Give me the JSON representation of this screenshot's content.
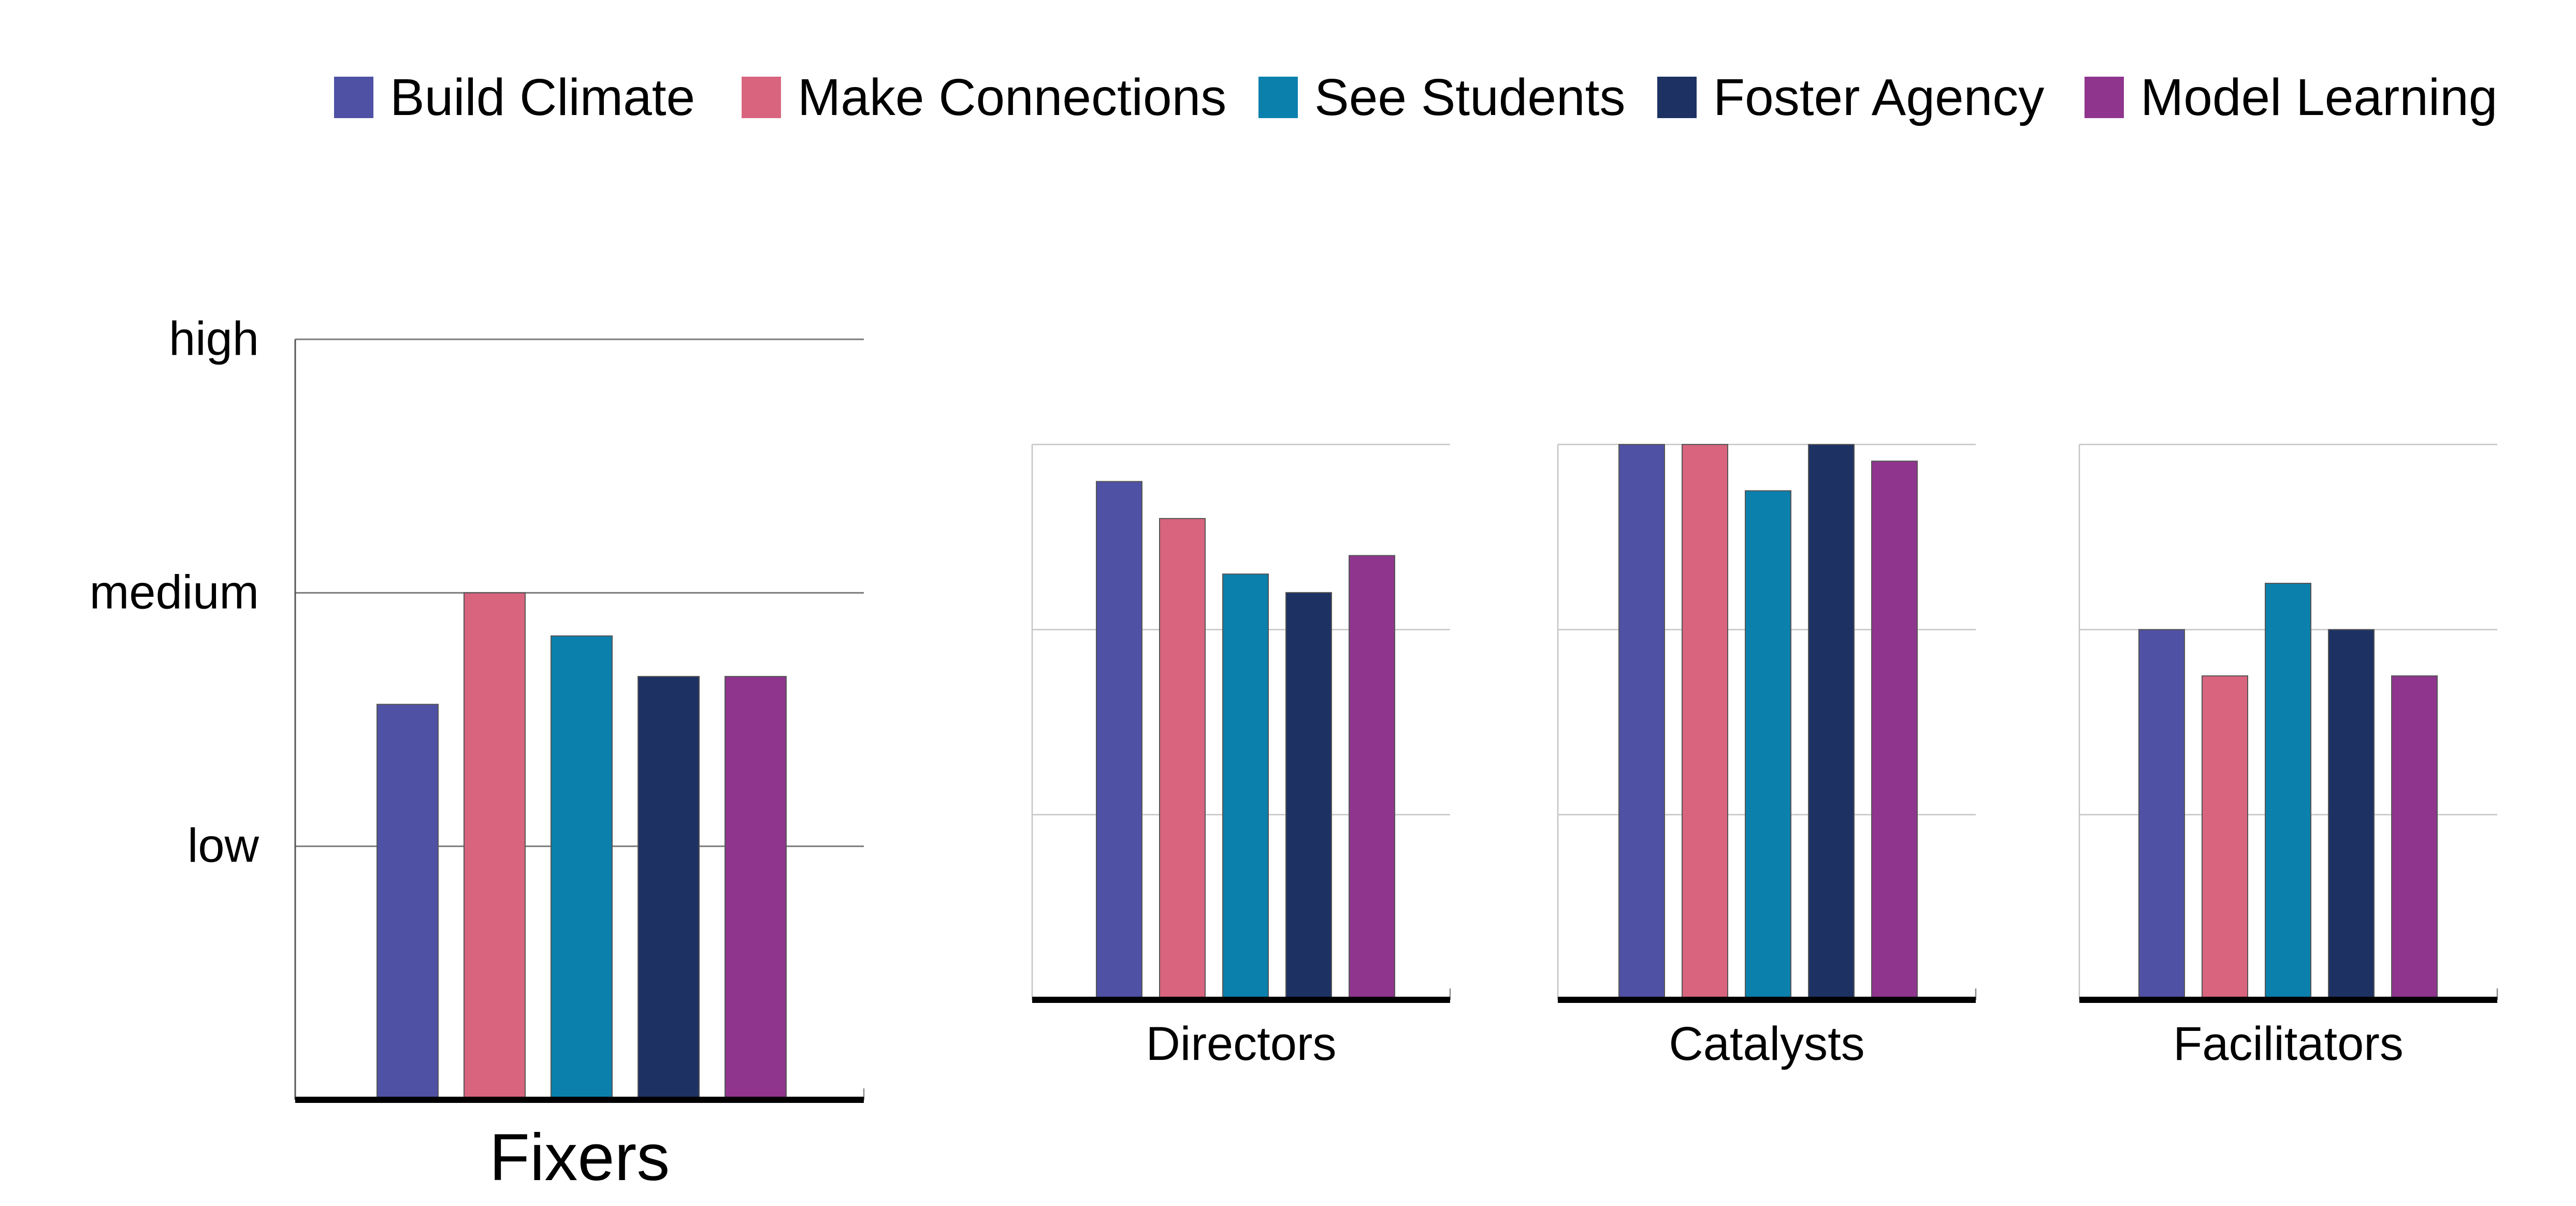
{
  "chart_data": {
    "type": "bar",
    "y_scale": {
      "min": 0,
      "max": 3,
      "tick_values": [
        1,
        2,
        3
      ],
      "tick_labels": [
        "low",
        "medium",
        "high"
      ]
    },
    "legend": {
      "placement": "top",
      "entries": [
        {
          "name": "Build Climate",
          "color": "#4e51a4"
        },
        {
          "name": "Make Connections",
          "color": "#d8647e"
        },
        {
          "name": "See Students",
          "color": "#0b80ad"
        },
        {
          "name": "Foster Agency",
          "color": "#1d3263"
        },
        {
          "name": "Model Learning",
          "color": "#8f358e"
        }
      ]
    },
    "series": [
      {
        "name": "Build Climate",
        "values": [
          1.56,
          2.8,
          3.0,
          2.0
        ]
      },
      {
        "name": "Make Connections",
        "values": [
          2.0,
          2.6,
          3.0,
          1.75
        ]
      },
      {
        "name": "See Students",
        "values": [
          1.83,
          2.3,
          2.75,
          2.25
        ]
      },
      {
        "name": "Foster Agency",
        "values": [
          1.67,
          2.2,
          3.0,
          2.0
        ]
      },
      {
        "name": "Model Learning",
        "values": [
          1.67,
          2.4,
          2.91,
          1.75
        ]
      }
    ],
    "categories": [
      "Fixers",
      "Directors",
      "Catalysts",
      "Facilitators"
    ],
    "panels": [
      {
        "title": "Fixers",
        "ylim": [
          0,
          3
        ],
        "show_tick_labels": true
      },
      {
        "title": "Directors",
        "ylim": [
          0,
          3
        ],
        "show_tick_labels": false
      },
      {
        "title": "Catalysts",
        "ylim": [
          0,
          3
        ],
        "show_tick_labels": false
      },
      {
        "title": "Facilitators",
        "ylim": [
          0,
          3
        ],
        "show_tick_labels": false
      }
    ],
    "grid": true
  }
}
